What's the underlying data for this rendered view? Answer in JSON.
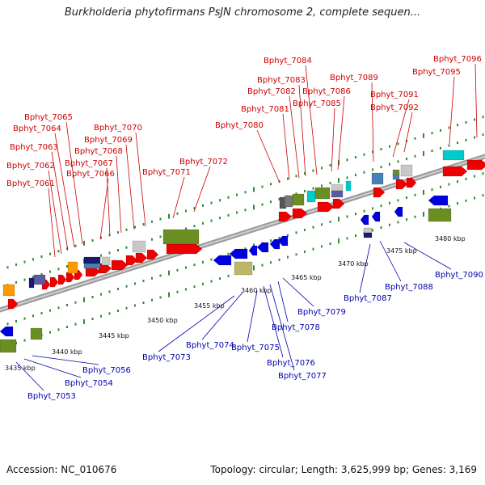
{
  "title": "Burkholderia phytofirmans PsJN chromosome 2, complete sequen...",
  "footer": {
    "accession": "Accession: NC_010676",
    "summary": "Topology: circular; Length: 3,625,999 bp; Genes: 3,169"
  },
  "colors": {
    "forward_label": "#cc0000",
    "reverse_label": "#0000aa",
    "forward_gene": "#ee0000",
    "reverse_gene": "#0000dd",
    "tick_green": "#2e8b2e",
    "backbone": "#888888"
  },
  "scale_labels": [
    "3435 kbp",
    "3440 kbp",
    "3445 kbp",
    "3450 kbp",
    "3455 kbp",
    "3460 kbp",
    "3465 kbp",
    "3470 kbp",
    "3475 kbp",
    "3480 kbp"
  ],
  "top_labels": [
    "Bphyt_7061",
    "Bphyt_7062",
    "Bphyt_7063",
    "Bphyt_7064",
    "Bphyt_7065",
    "Bphyt_7066",
    "Bphyt_7067",
    "Bphyt_7068",
    "Bphyt_7069",
    "Bphyt_7070",
    "Bphyt_7071",
    "Bphyt_7072",
    "Bphyt_7080",
    "Bphyt_7081",
    "Bphyt_7082",
    "Bphyt_7083",
    "Bphyt_7084",
    "Bphyt_7085",
    "Bphyt_7086",
    "Bphyt_7089",
    "Bphyt_7091",
    "Bphyt_7092",
    "Bphyt_7095",
    "Bphyt_7096"
  ],
  "bottom_labels": [
    "Bphyt_7053",
    "Bphyt_7054",
    "Bphyt_7056",
    "Bphyt_7073",
    "Bphyt_7074",
    "Bphyt_7075",
    "Bphyt_7076",
    "Bphyt_7077",
    "Bphyt_7078",
    "Bphyt_7079",
    "Bphyt_7087",
    "Bphyt_7088",
    "Bphyt_7090"
  ]
}
